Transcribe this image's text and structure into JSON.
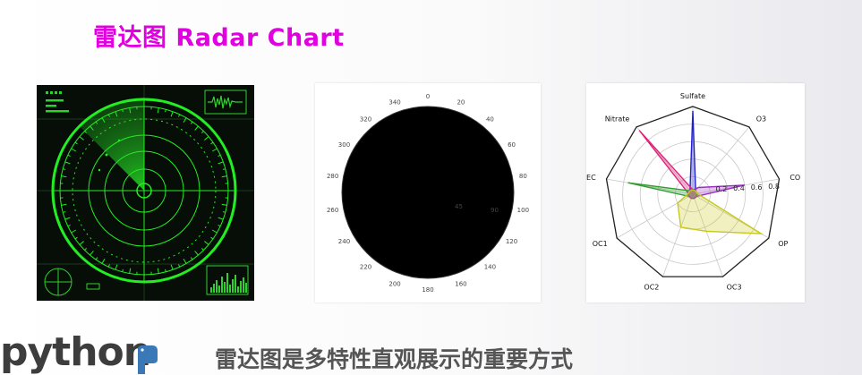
{
  "slide": {
    "title": "雷达图 Radar Chart",
    "subtitle": "雷达图是多特性直观展示的重要方式",
    "logo_text": "python"
  },
  "polar_chart": {
    "angle_labels": [
      "0",
      "20",
      "40",
      "60",
      "80",
      "100",
      "120",
      "140",
      "160",
      "180",
      "200",
      "220",
      "240",
      "260",
      "280",
      "300",
      "320",
      "340"
    ],
    "radial_labels": [
      "45",
      "90"
    ]
  },
  "chart_data": [
    {
      "type": "radar",
      "categories": [
        "Sulfate",
        "O3",
        "CO",
        "OP",
        "OC3",
        "OC2",
        "OC1",
        "EC",
        "Nitrate"
      ],
      "radial_ticks": [
        "0.2",
        "0.4",
        "0.6",
        "0.8"
      ],
      "series": [
        {
          "color": "#2020d0",
          "values": [
            0.95,
            0.05,
            0.05,
            0.05,
            0.05,
            0.05,
            0.05,
            0.05,
            0.05
          ]
        },
        {
          "color": "#e0207a",
          "values": [
            0.05,
            0.05,
            0.05,
            0.05,
            0.05,
            0.05,
            0.05,
            0.05,
            0.95
          ]
        },
        {
          "color": "#2f9e2f",
          "values": [
            0.05,
            0.05,
            0.05,
            0.05,
            0.05,
            0.05,
            0.05,
            0.75,
            0.05
          ]
        },
        {
          "color": "#9b30c0",
          "values": [
            0.05,
            0.1,
            0.6,
            0.05,
            0.05,
            0.05,
            0.05,
            0.05,
            0.05
          ]
        },
        {
          "color": "#c8c81e",
          "values": [
            0.05,
            0.05,
            0.05,
            0.9,
            0.45,
            0.4,
            0.2,
            0.05,
            0.05
          ]
        }
      ]
    }
  ],
  "colors": {
    "title": "#e000e0",
    "radar_green": "#22ee22",
    "polar_green": "#3f8f5a",
    "polar_salmon": "#ffae8c"
  }
}
